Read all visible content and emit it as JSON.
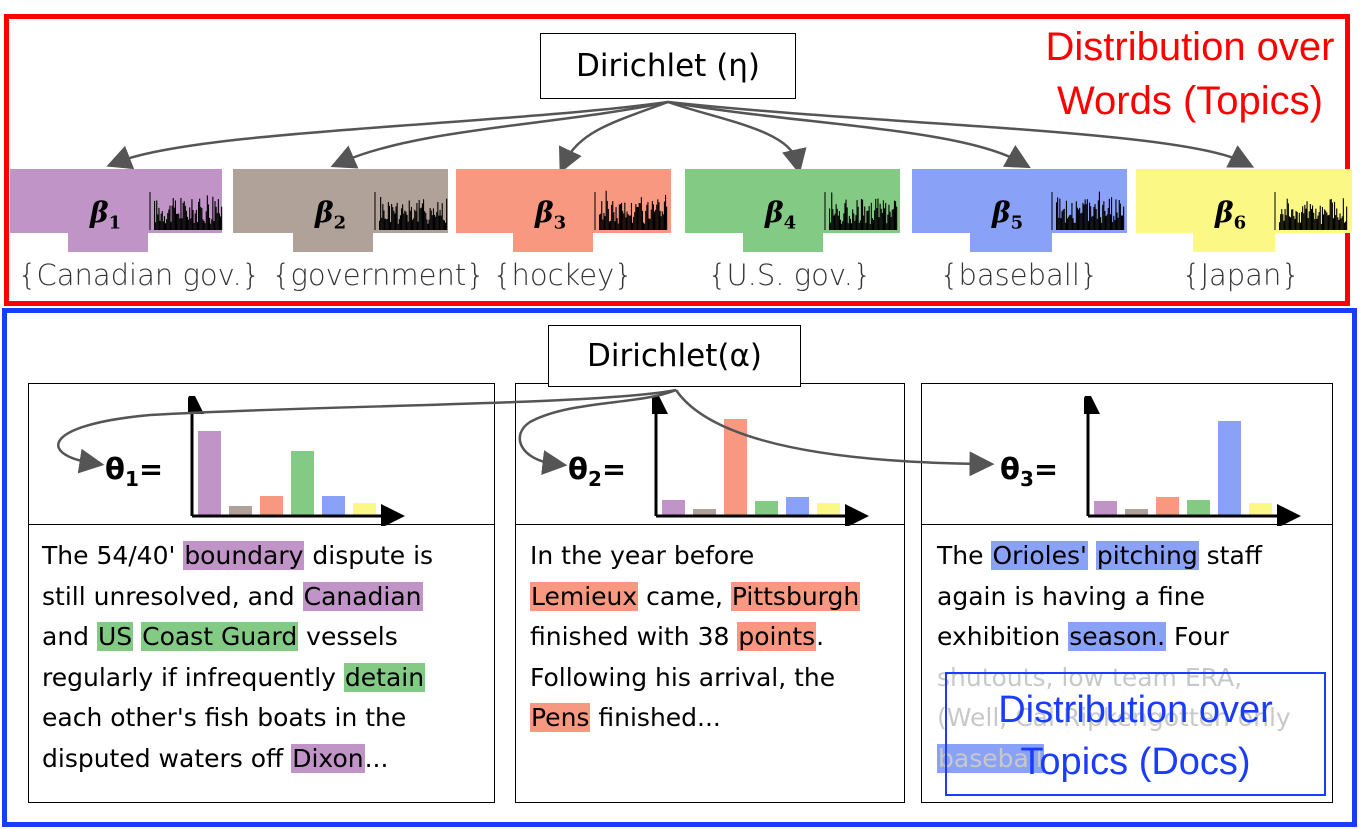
{
  "title_top": [
    "Distribution over",
    "Words (Topics)"
  ],
  "title_bottom": [
    "Distribution over",
    "Topics (Docs)"
  ],
  "dirichlet_eta": "Dirichlet (η)",
  "dirichlet_alpha": "Dirichlet(α)",
  "colors": {
    "purple": "#c094c6",
    "taupe": "#b0a298",
    "salmon": "#f99880",
    "green": "#83cb85",
    "blue": "#8aa1f8",
    "yellow": "#fbf886",
    "red_frame": "#ff0000",
    "blue_frame": "#1a3cff"
  },
  "topics": [
    {
      "symbol": "β",
      "index": "1",
      "label": "{Canadian gov.}",
      "color": "#c094c6"
    },
    {
      "symbol": "β",
      "index": "2",
      "label": "{government}",
      "color": "#b0a298"
    },
    {
      "symbol": "β",
      "index": "3",
      "label": "{hockey}",
      "color": "#f99880"
    },
    {
      "symbol": "β",
      "index": "4",
      "label": "{U.S. gov.}",
      "color": "#83cb85"
    },
    {
      "symbol": "β",
      "index": "5",
      "label": "{baseball}",
      "color": "#8aa1f8"
    },
    {
      "symbol": "β",
      "index": "6",
      "label": "{Japan}",
      "color": "#fbf886"
    }
  ],
  "docs": [
    {
      "theta": "θ",
      "index": "1",
      "eq": "=",
      "proportions": [
        0.85,
        0.1,
        0.2,
        0.65,
        0.2,
        0.13
      ],
      "lines": [
        [
          "The 54/40' ",
          {
            "t": "boundary",
            "c": "purple"
          },
          " dispute is"
        ],
        [
          "still unresolved, and ",
          {
            "t": "Canadian",
            "c": "purple"
          }
        ],
        [
          "and ",
          {
            "t": "US",
            "c": "green"
          },
          " ",
          {
            "t": "Coast Guard",
            "c": "green"
          },
          " vessels"
        ],
        [
          "regularly if infrequently ",
          {
            "t": "detain",
            "c": "green"
          }
        ],
        [
          "each other's fish boats in the"
        ],
        [
          "disputed waters off ",
          {
            "t": "Dixon",
            "c": "purple"
          },
          "..."
        ]
      ]
    },
    {
      "theta": "θ",
      "index": "2",
      "eq": "=",
      "proportions": [
        0.16,
        0.07,
        0.97,
        0.15,
        0.19,
        0.13
      ],
      "lines": [
        [
          "In the year before"
        ],
        [
          {
            "t": "Lemieux",
            "c": "salmon"
          },
          " came, ",
          {
            "t": "Pittsburgh",
            "c": "salmon"
          }
        ],
        [
          "finished with 38 ",
          {
            "t": "points",
            "c": "salmon"
          },
          "."
        ],
        [
          "Following his arrival, the"
        ],
        [
          {
            "t": "Pens",
            "c": "salmon"
          },
          " finished..."
        ]
      ]
    },
    {
      "theta": "θ",
      "index": "3",
      "eq": "=",
      "proportions": [
        0.15,
        0.07,
        0.19,
        0.16,
        0.95,
        0.13
      ],
      "lines": [
        [
          "The ",
          {
            "t": "Orioles'",
            "c": "blue"
          },
          " ",
          {
            "t": "pitching",
            "c": "blue"
          },
          " staff"
        ],
        [
          "again is having a fine"
        ],
        [
          "exhibition ",
          {
            "t": "season.",
            "c": "blue"
          },
          " Four"
        ],
        [
          "shutouts, low team ERA,"
        ],
        [
          "(Well, ",
          "Cal Ripken",
          "gotten only"
        ],
        [
          {
            "t": "baseball",
            "c": "blue"
          }
        ]
      ]
    }
  ]
}
